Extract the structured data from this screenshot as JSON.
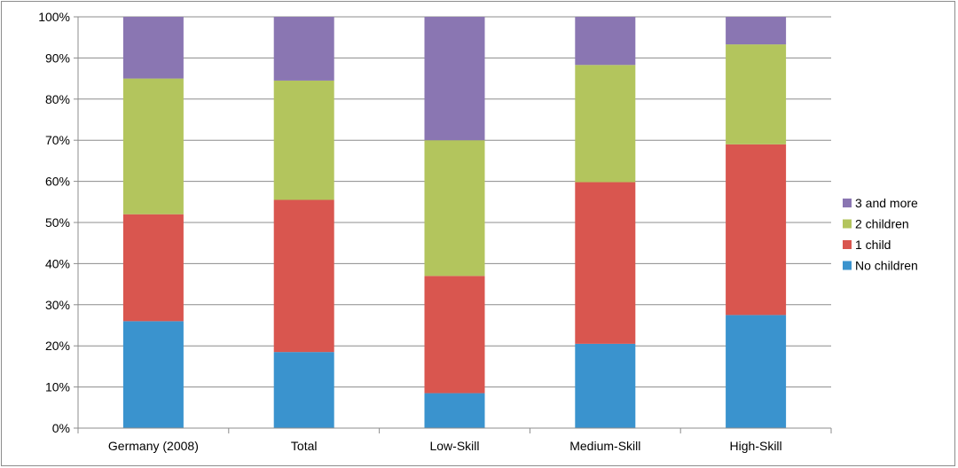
{
  "chart_data": {
    "type": "bar",
    "stacked": true,
    "categories": [
      "Germany (2008)",
      "Total",
      "Low-Skill",
      "Medium-Skill",
      "High-Skill"
    ],
    "series": [
      {
        "name": "No children",
        "color": "#3a93ce",
        "values": [
          26,
          18.5,
          8.5,
          20.5,
          27.5
        ]
      },
      {
        "name": "1 child",
        "color": "#d9564f",
        "values": [
          26,
          37,
          28.5,
          39.3,
          41.5
        ]
      },
      {
        "name": "2 children",
        "color": "#b3c55d",
        "values": [
          33,
          29,
          33,
          28.5,
          24.3
        ]
      },
      {
        "name": "3 and more",
        "color": "#8a76b2",
        "values": [
          15,
          15.5,
          30,
          11.7,
          6.7
        ]
      }
    ],
    "y_ticks": [
      "0%",
      "10%",
      "20%",
      "30%",
      "40%",
      "50%",
      "60%",
      "70%",
      "80%",
      "90%",
      "100%"
    ],
    "ylim": [
      0,
      100
    ],
    "y_unit": "percent",
    "grid": true,
    "legend_position": "right",
    "legend_order": [
      "3 and more",
      "2 children",
      "1 child",
      "No children"
    ],
    "title": "",
    "xlabel": "",
    "ylabel": ""
  },
  "colors": {
    "grid": "#8c8c8c",
    "axis": "#8c8c8c"
  }
}
